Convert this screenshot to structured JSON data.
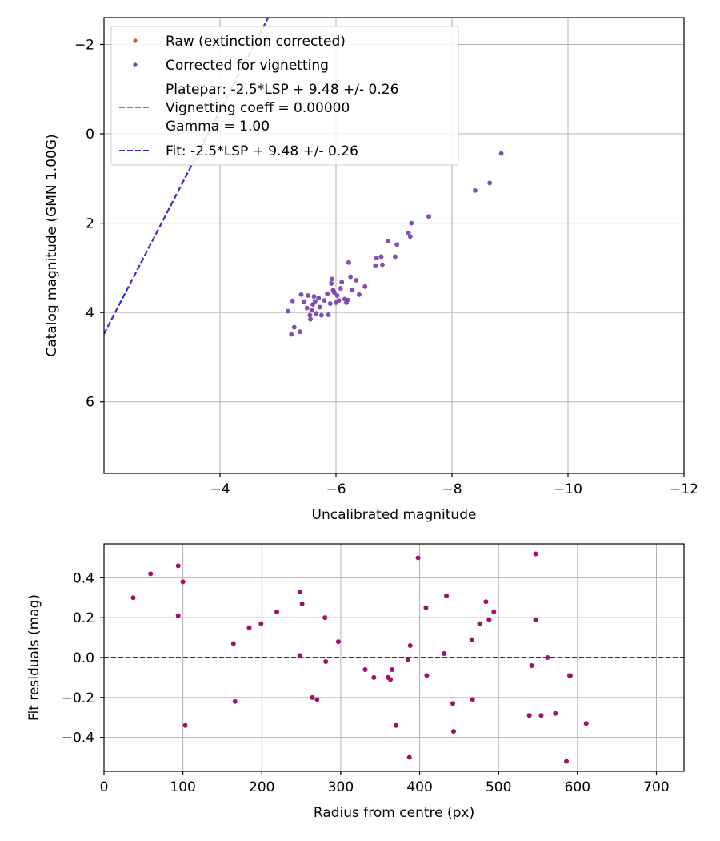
{
  "chart_data": [
    {
      "type": "scatter",
      "xlabel": "Uncalibrated magnitude",
      "ylabel": "Catalog magnitude (GMN 1.00G)",
      "xlim": [
        -2,
        -12
      ],
      "ylim": [
        7.6,
        -2.6
      ],
      "x_ticks": [
        -4,
        -6,
        -8,
        -10,
        -12
      ],
      "x_tick_labels": [
        "−4",
        "−6",
        "−8",
        "−10",
        "−12"
      ],
      "y_ticks": [
        -2,
        0,
        2,
        4,
        6
      ],
      "y_tick_labels": [
        "−2",
        "0",
        "2",
        "4",
        "6"
      ],
      "grid": true,
      "legend_position": "top-left",
      "legend": {
        "raw": "Raw (extinction corrected)",
        "corrected": "Corrected for vignetting",
        "platepar_line1": "Platepar: -2.5*LSP + 9.48 +/- 0.26",
        "platepar_line2": "Vignetting coeff = 0.00000",
        "platepar_line3": "Gamma = 1.00",
        "fit": "Fit: -2.5*LSP + 9.48 +/- 0.26"
      },
      "fit_line": {
        "slope": 2.5,
        "intercept": 9.48
      },
      "colors": {
        "raw": "#e8483a",
        "corrected": "#5b3fd0",
        "overlap": "#6a2bb8",
        "fit": "#2a2ad8",
        "platepar": "#808080"
      },
      "points": [
        [
          -5.17,
          3.97
        ],
        [
          -5.23,
          4.49
        ],
        [
          -5.25,
          3.74
        ],
        [
          -5.28,
          4.33
        ],
        [
          -5.38,
          4.43
        ],
        [
          -5.4,
          3.6
        ],
        [
          -5.45,
          3.76
        ],
        [
          -5.5,
          3.9
        ],
        [
          -5.52,
          3.62
        ],
        [
          -5.55,
          4.06
        ],
        [
          -5.56,
          4.15
        ],
        [
          -5.58,
          3.95
        ],
        [
          -5.6,
          3.82
        ],
        [
          -5.62,
          3.64
        ],
        [
          -5.64,
          3.75
        ],
        [
          -5.66,
          4.02
        ],
        [
          -5.7,
          3.68
        ],
        [
          -5.72,
          3.88
        ],
        [
          -5.75,
          4.06
        ],
        [
          -5.8,
          3.73
        ],
        [
          -5.85,
          3.58
        ],
        [
          -5.87,
          4.05
        ],
        [
          -5.9,
          3.8
        ],
        [
          -5.92,
          3.35
        ],
        [
          -5.93,
          3.25
        ],
        [
          -5.95,
          3.5
        ],
        [
          -5.97,
          3.55
        ],
        [
          -6.0,
          3.78
        ],
        [
          -6.02,
          3.62
        ],
        [
          -6.05,
          3.73
        ],
        [
          -6.08,
          3.46
        ],
        [
          -6.1,
          3.32
        ],
        [
          -6.15,
          3.7
        ],
        [
          -6.18,
          3.78
        ],
        [
          -6.2,
          3.72
        ],
        [
          -6.22,
          2.88
        ],
        [
          -6.25,
          3.2
        ],
        [
          -6.28,
          3.5
        ],
        [
          -6.35,
          3.28
        ],
        [
          -6.4,
          3.6
        ],
        [
          -6.5,
          3.42
        ],
        [
          -6.68,
          2.95
        ],
        [
          -6.7,
          2.78
        ],
        [
          -6.78,
          2.75
        ],
        [
          -6.8,
          2.93
        ],
        [
          -6.9,
          2.4
        ],
        [
          -7.02,
          2.75
        ],
        [
          -7.05,
          2.48
        ],
        [
          -7.25,
          2.22
        ],
        [
          -7.28,
          2.3
        ],
        [
          -7.3,
          2.0
        ],
        [
          -7.6,
          1.85
        ],
        [
          -8.4,
          1.27
        ],
        [
          -8.65,
          1.1
        ],
        [
          -8.85,
          0.44
        ]
      ]
    },
    {
      "type": "scatter",
      "xlabel": "Radius from centre (px)",
      "ylabel": "Fit residuals (mag)",
      "xlim": [
        0,
        735
      ],
      "ylim": [
        -0.57,
        0.57
      ],
      "x_ticks": [
        0,
        100,
        200,
        300,
        400,
        500,
        600,
        700
      ],
      "x_tick_labels": [
        "0",
        "100",
        "200",
        "300",
        "400",
        "500",
        "600",
        "700"
      ],
      "y_ticks": [
        0.4,
        0.2,
        0.0,
        -0.2,
        -0.4
      ],
      "y_tick_labels": [
        "0.4",
        "0.2",
        "0.0",
        "−0.2",
        "−0.4"
      ],
      "grid": true,
      "reference_line": 0.0,
      "colors": {
        "points": "#a0106a",
        "reference": "#333333"
      },
      "points": [
        [
          37,
          0.3
        ],
        [
          59,
          0.42
        ],
        [
          94,
          0.46
        ],
        [
          94,
          0.21
        ],
        [
          100,
          0.38
        ],
        [
          103,
          -0.34
        ],
        [
          164,
          0.07
        ],
        [
          166,
          -0.22
        ],
        [
          184,
          0.15
        ],
        [
          199,
          0.17
        ],
        [
          219,
          0.23
        ],
        [
          248,
          0.33
        ],
        [
          248,
          0.01
        ],
        [
          251,
          0.27
        ],
        [
          264,
          -0.2
        ],
        [
          270,
          -0.21
        ],
        [
          280,
          0.2
        ],
        [
          281,
          -0.02
        ],
        [
          297,
          0.08
        ],
        [
          331,
          -0.06
        ],
        [
          342,
          -0.1
        ],
        [
          360,
          -0.1
        ],
        [
          363,
          -0.11
        ],
        [
          365,
          -0.06
        ],
        [
          370,
          -0.34
        ],
        [
          385,
          -0.01
        ],
        [
          387,
          -0.5
        ],
        [
          388,
          0.06
        ],
        [
          398,
          0.5
        ],
        [
          408,
          0.25
        ],
        [
          409,
          -0.09
        ],
        [
          431,
          0.02
        ],
        [
          434,
          0.31
        ],
        [
          442,
          -0.23
        ],
        [
          443,
          -0.37
        ],
        [
          466,
          0.09
        ],
        [
          467,
          -0.21
        ],
        [
          476,
          0.17
        ],
        [
          484,
          0.28
        ],
        [
          488,
          0.19
        ],
        [
          494,
          0.23
        ],
        [
          539,
          -0.29
        ],
        [
          542,
          -0.04
        ],
        [
          547,
          0.52
        ],
        [
          547,
          0.19
        ],
        [
          554,
          -0.29
        ],
        [
          562,
          0.0
        ],
        [
          572,
          -0.28
        ],
        [
          586,
          -0.52
        ],
        [
          590,
          -0.09
        ],
        [
          591,
          -0.09
        ],
        [
          611,
          -0.33
        ]
      ]
    }
  ]
}
